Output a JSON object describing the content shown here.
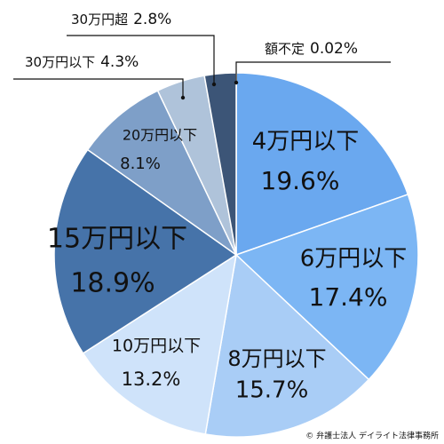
{
  "chart_data": {
    "type": "pie",
    "categories": [
      "額不定",
      "4万円以下",
      "6万円以下",
      "8万円以下",
      "10万円以下",
      "15万円以下",
      "20万円以下",
      "30万円以下",
      "30万円超"
    ],
    "values": [
      0.02,
      19.6,
      17.4,
      15.7,
      13.2,
      18.9,
      8.1,
      4.3,
      2.8
    ],
    "value_labels": [
      "0.02%",
      "19.6%",
      "17.4%",
      "15.7%",
      "13.2%",
      "18.9%",
      "8.1%",
      "4.3%",
      "2.8%"
    ],
    "colors": [
      "#1f3655",
      "#6aa8ef",
      "#7cb6f4",
      "#a9cdf6",
      "#cfe3fa",
      "#4673a9",
      "#7e9fc8",
      "#afc3da",
      "#3c5577"
    ],
    "credit": "© 弁護士法人 デイライト法律事務所"
  }
}
